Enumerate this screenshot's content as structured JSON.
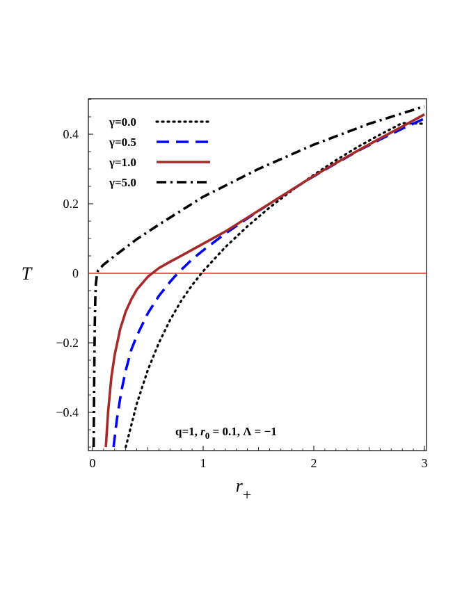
{
  "chart_data": {
    "type": "line",
    "title": "",
    "xlabel": "r",
    "xlabel_sub": "+",
    "ylabel": "T",
    "xlim": [
      0,
      3
    ],
    "ylim": [
      -0.5,
      0.5
    ],
    "xticks": [
      0,
      1,
      2,
      3
    ],
    "xtick_labels": [
      "0",
      "1",
      "2",
      "3"
    ],
    "yticks": [
      -0.4,
      -0.2,
      0,
      0.2,
      0.4
    ],
    "ytick_labels": [
      "−0.4",
      "−0.2",
      "0",
      "0.2",
      "0.4"
    ],
    "grid": false,
    "legend_position": "top-left",
    "annotation": {
      "prefix": "q=1, ",
      "r0_symbol": "r",
      "r0_sub": "0",
      "middle": " = 0.1, ",
      "lambda_part": "Λ = −1"
    },
    "reference_line": {
      "y": 0,
      "color": "#ff0000"
    },
    "series": [
      {
        "name": "γ=0.0",
        "color": "#000000",
        "dash": "dot",
        "x": [
          0.3,
          0.4,
          0.5,
          0.6,
          0.7,
          0.8,
          0.9,
          1.0,
          1.2,
          1.4,
          1.6,
          1.8,
          2.0,
          2.2,
          2.4,
          2.6,
          2.8,
          3.0
        ],
        "y": [
          -0.5,
          -0.375,
          -0.278,
          -0.2,
          -0.135,
          -0.08,
          -0.034,
          0.006,
          0.075,
          0.135,
          0.189,
          0.238,
          0.283,
          0.325,
          0.364,
          0.399,
          0.432,
          0.43
        ]
      },
      {
        "name": "γ=0.5",
        "color": "#0000ff",
        "dash": "long-dash",
        "x": [
          0.19,
          0.22,
          0.26,
          0.3,
          0.35,
          0.4,
          0.5,
          0.6,
          0.7,
          0.77,
          0.9,
          1.0,
          1.2,
          1.4,
          1.6,
          1.8,
          2.0,
          2.2,
          2.4,
          2.6,
          2.8,
          3.0
        ],
        "y": [
          -0.5,
          -0.42,
          -0.34,
          -0.28,
          -0.22,
          -0.18,
          -0.115,
          -0.065,
          -0.025,
          0.0,
          0.04,
          0.066,
          0.114,
          0.158,
          0.2,
          0.24,
          0.279,
          0.316,
          0.352,
          0.385,
          0.416,
          0.445
        ]
      },
      {
        "name": "γ=1.0",
        "color": "#a52a2a",
        "dash": "solid",
        "x": [
          0.12,
          0.14,
          0.17,
          0.2,
          0.25,
          0.3,
          0.35,
          0.4,
          0.5,
          0.6,
          0.7,
          0.8,
          1.0,
          1.2,
          1.4,
          1.6,
          1.8,
          2.0,
          2.2,
          2.4,
          2.6,
          2.8,
          3.0
        ],
        "y": [
          -0.5,
          -0.4,
          -0.3,
          -0.235,
          -0.16,
          -0.11,
          -0.075,
          -0.047,
          -0.01,
          0.015,
          0.033,
          0.05,
          0.085,
          0.12,
          0.16,
          0.2,
          0.24,
          0.28,
          0.317,
          0.353,
          0.388,
          0.422,
          0.457
        ]
      },
      {
        "name": "γ=5.0",
        "color": "#000000",
        "dash": "dash-dot",
        "x": [
          0.01,
          0.015,
          0.02,
          0.025,
          0.03,
          0.04,
          0.05,
          0.07,
          0.1,
          0.2,
          0.4,
          0.6,
          0.8,
          1.0,
          1.5,
          2.0,
          2.5,
          3.0
        ],
        "y": [
          -0.5,
          -0.3,
          -0.15,
          -0.07,
          -0.03,
          -0.005,
          0.008,
          0.015,
          0.025,
          0.05,
          0.098,
          0.14,
          0.18,
          0.22,
          0.3,
          0.37,
          0.43,
          0.48
        ]
      }
    ]
  }
}
